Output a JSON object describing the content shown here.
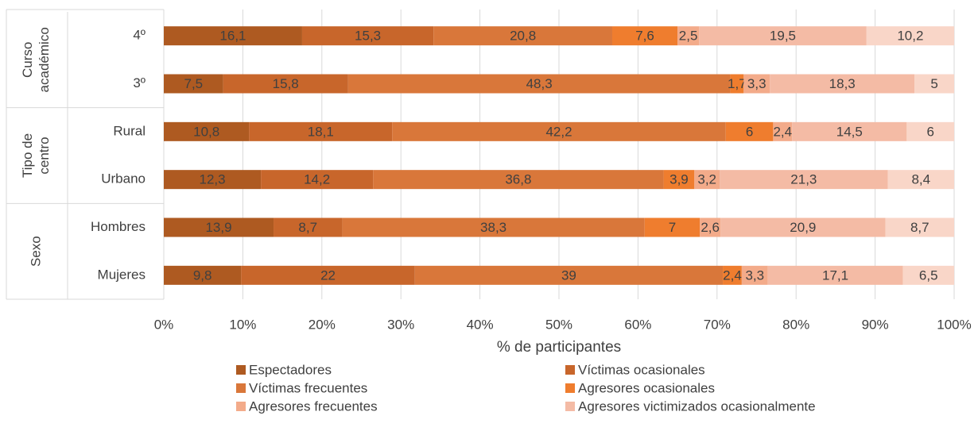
{
  "chart_data": {
    "type": "stacked-bar-percent",
    "orientation": "horizontal",
    "x_label": "% de participantes",
    "groups": [
      {
        "label": [
          "Curso",
          "académico"
        ],
        "categories": [
          0,
          1
        ]
      },
      {
        "label": [
          "Tipo de",
          "centro"
        ],
        "categories": [
          2,
          3
        ]
      },
      {
        "label": [
          "Sexo"
        ],
        "categories": [
          4,
          5
        ]
      }
    ],
    "categories": [
      "4º",
      "3º",
      "Rural",
      "Urbano",
      "Hombres",
      "Mujeres"
    ],
    "series": [
      {
        "name": "Espectadores",
        "color": "#ae5a21",
        "values": [
          16.1,
          7.5,
          10.8,
          12.3,
          13.9,
          9.8
        ],
        "value_labels": [
          "16,1",
          "7,5",
          "10,8",
          "12,3",
          "13,9",
          "9,8"
        ]
      },
      {
        "name": "Víctimas ocasionales",
        "color": "#c8662b",
        "values": [
          15.3,
          15.8,
          18.1,
          14.2,
          8.7,
          22
        ],
        "value_labels": [
          "15,3",
          "15,8",
          "18,1",
          "14,2",
          "8,7",
          "22"
        ]
      },
      {
        "name": "Víctimas frecuentes",
        "color": "#d9773a",
        "values": [
          20.8,
          48.3,
          42.2,
          36.8,
          38.3,
          39
        ],
        "value_labels": [
          "20,8",
          "48,3",
          "42,2",
          "36,8",
          "38,3",
          "39"
        ]
      },
      {
        "name": "Agresores ocasionales",
        "color": "#ef7d2e",
        "values": [
          7.6,
          1.7,
          6,
          3.9,
          7,
          2.4
        ],
        "value_labels": [
          "7,6",
          "1,7",
          "6",
          "3,9",
          "7",
          "2,4"
        ]
      },
      {
        "name": "Agresores frecuentes",
        "color": "#f3ab8a",
        "values": [
          2.5,
          3.3,
          2.4,
          3.2,
          2.6,
          3.3
        ],
        "value_labels": [
          "2,5",
          "3,3",
          "2,4",
          "3,2",
          "2,6",
          "3,3"
        ]
      },
      {
        "name": "Agresores victimizados ocasionalmente",
        "color": "#f4bba5",
        "values": [
          19.5,
          18.3,
          14.5,
          21.3,
          20.9,
          17.1
        ],
        "value_labels": [
          "19,5",
          "18,3",
          "14,5",
          "21,3",
          "20,9",
          "17,1"
        ]
      },
      {
        "color": "#f9d6c8",
        "values": [
          10.2,
          5,
          6,
          8.4,
          8.7,
          6.5
        ],
        "value_labels": [
          "10,2",
          "5",
          "6",
          "8,4",
          "8,7",
          "6,5"
        ]
      }
    ],
    "xlim": [
      0,
      100
    ],
    "xticks": [
      {
        "value": 0,
        "label": "0%"
      },
      {
        "value": 10,
        "label": "10%"
      },
      {
        "value": 20,
        "label": "20%"
      },
      {
        "value": 30,
        "label": "30%"
      },
      {
        "value": 40,
        "label": "40%"
      },
      {
        "value": 50,
        "label": "50%"
      },
      {
        "value": 60,
        "label": "60%"
      },
      {
        "value": 70,
        "label": "70%"
      },
      {
        "value": 80,
        "label": "80%"
      },
      {
        "value": 90,
        "label": "90%"
      },
      {
        "value": 100,
        "label": "100%"
      }
    ],
    "grid": true,
    "legend": "bottom"
  }
}
